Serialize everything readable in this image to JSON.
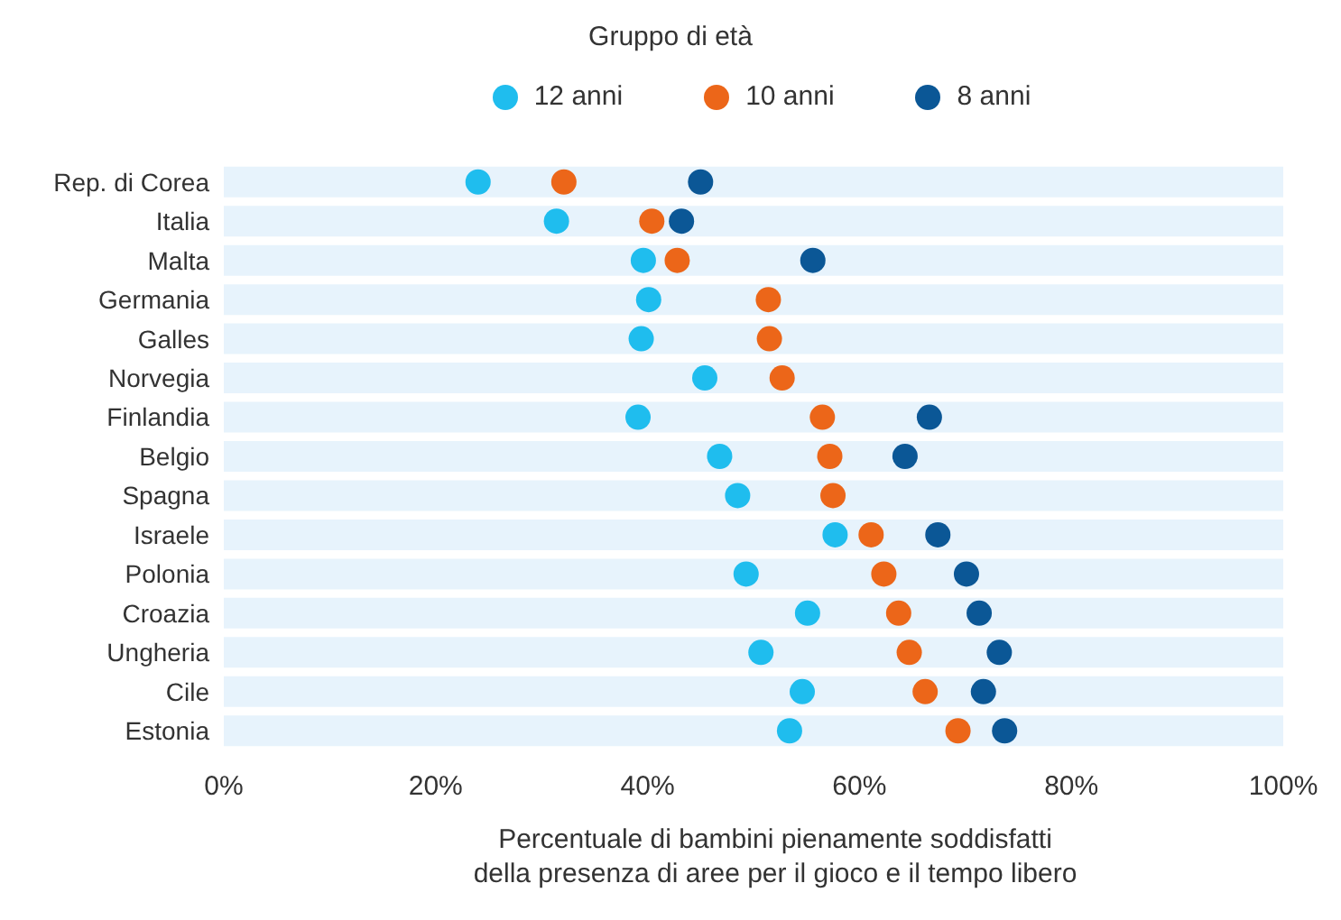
{
  "chart_data": {
    "type": "scatter",
    "legend_title": "Gruppo di età",
    "xlabel": "Percentuale di bambini pienamente soddisfatti\ndella presenza di aree per il gioco e il tempo libero",
    "orientation": "horizontal",
    "categories": [
      "Rep. di Corea",
      "Italia",
      "Malta",
      "Germania",
      "Galles",
      "Norvegia",
      "Finlandia",
      "Belgio",
      "Spagna",
      "Israele",
      "Polonia",
      "Croazia",
      "Ungheria",
      "Cile",
      "Estonia"
    ],
    "series": [
      {
        "name": "12 anni",
        "color": "#1fbdee",
        "values": [
          24,
          31.4,
          39.6,
          40.1,
          39.4,
          45.4,
          39.1,
          46.8,
          48.5,
          57.7,
          49.3,
          55.1,
          50.7,
          54.6,
          53.4
        ]
      },
      {
        "name": "10 anni",
        "color": "#ec6619",
        "values": [
          32.1,
          40.4,
          42.8,
          51.4,
          51.5,
          52.7,
          56.5,
          57.2,
          57.5,
          61.1,
          62.3,
          63.7,
          64.7,
          66.2,
          69.3
        ]
      },
      {
        "name": "8 anni",
        "color": "#0b5796",
        "values": [
          45,
          43.2,
          55.6,
          null,
          null,
          null,
          66.6,
          64.3,
          null,
          67.4,
          70.1,
          71.3,
          73.2,
          71.7,
          73.7
        ]
      }
    ],
    "xlim": [
      0,
      100
    ],
    "xticks": [
      {
        "value": 0,
        "label": "0%"
      },
      {
        "value": 20,
        "label": "20%"
      },
      {
        "value": 40,
        "label": "40%"
      },
      {
        "value": 60,
        "label": "60%"
      },
      {
        "value": 80,
        "label": "80%"
      },
      {
        "value": 100,
        "label": "100%"
      }
    ],
    "grid": "y",
    "legend": "top",
    "marker": "circle"
  }
}
